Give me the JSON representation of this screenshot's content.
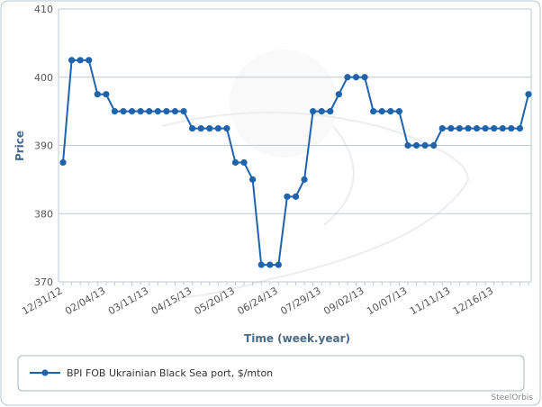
{
  "chart_data": {
    "type": "line",
    "x_label": "Time (week.year)",
    "y_label": "Price",
    "watermark": "SteelOrbis",
    "categories": [
      "12/31/12",
      null,
      null,
      null,
      null,
      "02/04/13",
      null,
      null,
      null,
      null,
      "03/11/13",
      null,
      null,
      null,
      null,
      "04/15/13",
      null,
      null,
      null,
      null,
      "05/20/13",
      null,
      null,
      null,
      null,
      "06/24/13",
      null,
      null,
      null,
      null,
      "07/29/13",
      null,
      null,
      null,
      null,
      "09/02/13",
      null,
      null,
      null,
      null,
      "10/07/13",
      null,
      null,
      null,
      null,
      "11/11/13",
      null,
      null,
      null,
      null,
      "12/16/13",
      null,
      null,
      null,
      null
    ],
    "series": [
      {
        "name": "BPI FOB Ukrainian Black Sea port, $/mton",
        "color": "#1f63ad",
        "values": [
          387.5,
          402.5,
          402.5,
          402.5,
          397.5,
          397.5,
          395,
          395,
          395,
          395,
          395,
          395,
          395,
          395,
          395,
          392.5,
          392.5,
          392.5,
          392.5,
          392.5,
          387.5,
          387.5,
          385,
          372.5,
          372.5,
          372.5,
          382.5,
          382.5,
          385,
          395,
          395,
          395,
          397.5,
          400,
          400,
          400,
          395,
          395,
          395,
          395,
          390,
          390,
          390,
          390,
          392.5,
          392.5,
          392.5,
          392.5,
          392.5,
          392.5,
          392.5,
          392.5,
          392.5,
          392.5,
          397.5
        ]
      }
    ],
    "ylim": [
      370,
      410
    ],
    "yticks": [
      370,
      380,
      390,
      400,
      410
    ],
    "grid": true
  }
}
